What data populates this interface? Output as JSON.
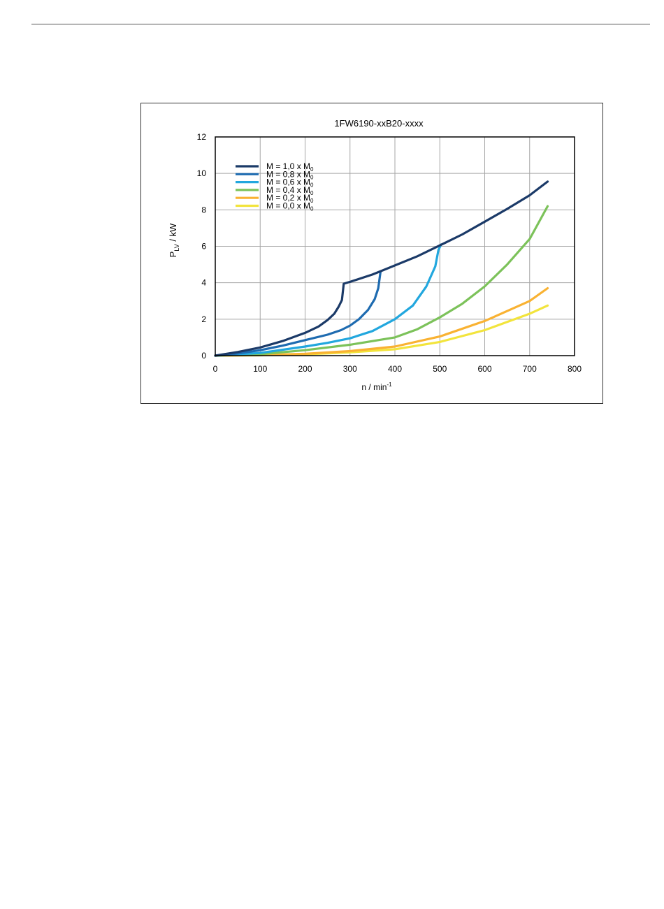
{
  "chart_data": {
    "type": "line",
    "title": "1FW6190-xxB20-xxxx",
    "ylabel": {
      "main": "P",
      "sub": "LV",
      "rest": " / kW"
    },
    "xlabel": {
      "main": "n / min",
      "sup": "-1"
    },
    "xlim": [
      0,
      800
    ],
    "ylim": [
      0,
      12
    ],
    "xticks": [
      0,
      100,
      200,
      300,
      400,
      500,
      600,
      700,
      800
    ],
    "yticks": [
      0,
      2,
      4,
      6,
      8,
      10,
      12
    ],
    "grid": true,
    "legend_position": "top-left",
    "series": [
      {
        "name": "M = 1,0 x M",
        "sub": "0",
        "color": "#1b3a68",
        "points": [
          [
            0,
            0
          ],
          [
            50,
            0.2
          ],
          [
            100,
            0.45
          ],
          [
            150,
            0.8
          ],
          [
            200,
            1.25
          ],
          [
            230,
            1.6
          ],
          [
            250,
            1.95
          ],
          [
            265,
            2.3
          ],
          [
            275,
            2.7
          ],
          [
            282,
            3.05
          ],
          [
            286,
            3.95
          ],
          [
            300,
            4.05
          ],
          [
            350,
            4.45
          ],
          [
            400,
            4.95
          ],
          [
            450,
            5.45
          ],
          [
            500,
            6.05
          ],
          [
            550,
            6.65
          ],
          [
            600,
            7.35
          ],
          [
            650,
            8.05
          ],
          [
            700,
            8.8
          ],
          [
            740,
            9.55
          ]
        ]
      },
      {
        "name": "M = 0,8 x M",
        "sub": "0",
        "color": "#1e6bb0",
        "points": [
          [
            0,
            0
          ],
          [
            50,
            0.12
          ],
          [
            100,
            0.3
          ],
          [
            150,
            0.55
          ],
          [
            200,
            0.85
          ],
          [
            250,
            1.15
          ],
          [
            280,
            1.4
          ],
          [
            300,
            1.65
          ],
          [
            320,
            2.0
          ],
          [
            340,
            2.5
          ],
          [
            355,
            3.1
          ],
          [
            363,
            3.7
          ],
          [
            368,
            4.6
          ]
        ]
      },
      {
        "name": "M = 0,6 x M",
        "sub": "0",
        "color": "#22a7de",
        "points": [
          [
            0,
            0
          ],
          [
            100,
            0.15
          ],
          [
            200,
            0.5
          ],
          [
            250,
            0.7
          ],
          [
            300,
            0.95
          ],
          [
            350,
            1.35
          ],
          [
            400,
            2.0
          ],
          [
            440,
            2.75
          ],
          [
            470,
            3.8
          ],
          [
            490,
            4.9
          ],
          [
            497,
            5.8
          ],
          [
            503,
            6.1
          ]
        ]
      },
      {
        "name": "M = 0,4 x M",
        "sub": "0",
        "color": "#7cc25a",
        "points": [
          [
            0,
            0
          ],
          [
            100,
            0.08
          ],
          [
            200,
            0.3
          ],
          [
            300,
            0.6
          ],
          [
            400,
            1.0
          ],
          [
            450,
            1.45
          ],
          [
            500,
            2.1
          ],
          [
            550,
            2.85
          ],
          [
            600,
            3.8
          ],
          [
            650,
            5.0
          ],
          [
            700,
            6.4
          ],
          [
            740,
            8.2
          ]
        ]
      },
      {
        "name": "M = 0,2 x M",
        "sub": "0",
        "color": "#f9b232",
        "points": [
          [
            0,
            0
          ],
          [
            100,
            0.03
          ],
          [
            200,
            0.1
          ],
          [
            300,
            0.25
          ],
          [
            400,
            0.5
          ],
          [
            500,
            1.05
          ],
          [
            600,
            1.9
          ],
          [
            700,
            3.0
          ],
          [
            740,
            3.7
          ]
        ]
      },
      {
        "name": "M = 0,0 x M",
        "sub": "0",
        "color": "#f2e43c",
        "points": [
          [
            0,
            0
          ],
          [
            100,
            0.02
          ],
          [
            200,
            0.07
          ],
          [
            300,
            0.18
          ],
          [
            400,
            0.35
          ],
          [
            500,
            0.75
          ],
          [
            600,
            1.4
          ],
          [
            700,
            2.3
          ],
          [
            740,
            2.75
          ]
        ]
      }
    ]
  }
}
